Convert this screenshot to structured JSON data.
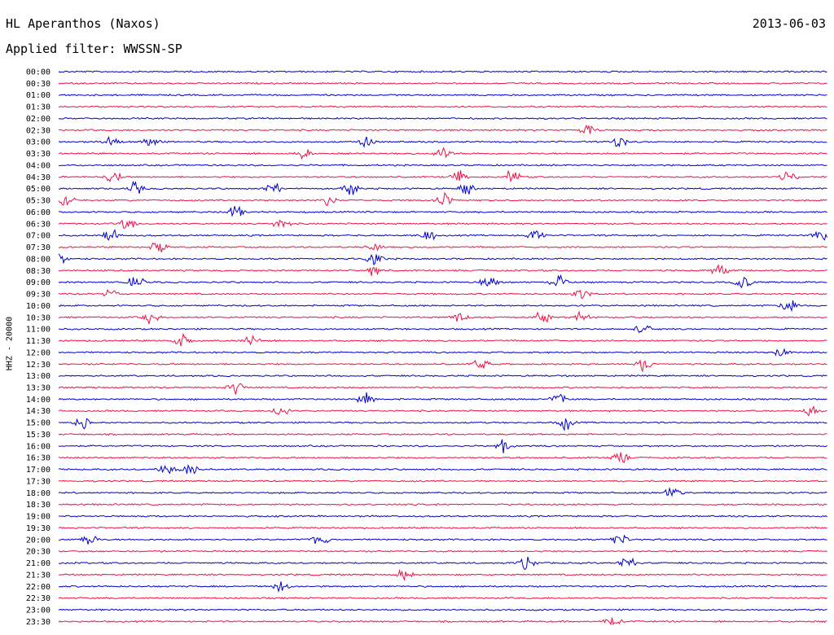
{
  "header": {
    "station": "HL Aperanthos (Naxos)",
    "date": "2013-06-03",
    "filter": "Applied filter: WWSSN-SP"
  },
  "channel_label": "HHZ - 20000",
  "colors": {
    "a": "#0000cc",
    "b": "#ee1144"
  },
  "chart_data": {
    "type": "line",
    "title": "HL Aperanthos (Naxos)",
    "date": "2013-06-03",
    "ylabel": "HHZ - 20000",
    "row_labels": [
      "00:00",
      "00:30",
      "01:00",
      "01:30",
      "02:00",
      "02:30",
      "03:00",
      "03:30",
      "04:00",
      "04:30",
      "05:00",
      "05:30",
      "06:00",
      "06:30",
      "07:00",
      "07:30",
      "08:00",
      "08:30",
      "09:00",
      "09:30",
      "10:00",
      "10:30",
      "11:00",
      "11:30",
      "12:00",
      "12:30",
      "13:00",
      "13:30",
      "14:00",
      "14:30",
      "15:00",
      "15:30",
      "16:00",
      "16:30",
      "17:00",
      "17:30",
      "18:00",
      "18:30",
      "19:00",
      "19:30",
      "20:00",
      "20:30",
      "21:00",
      "21:30",
      "22:00",
      "22:30",
      "23:00",
      "23:30"
    ],
    "series_colors": [
      "#0000cc",
      "#ee1144"
    ],
    "row_events": [
      [],
      [],
      [],
      [],
      [],
      [
        0.69
      ],
      [
        0.07,
        0.12,
        0.4,
        0.73
      ],
      [
        0.32,
        0.5
      ],
      [],
      [
        0.07,
        0.52,
        0.59,
        0.95
      ],
      [
        0.1,
        0.28,
        0.38,
        0.53
      ],
      [
        0.01,
        0.35,
        0.5
      ],
      [
        0.23
      ],
      [
        0.09,
        0.29
      ],
      [
        0.07,
        0.48,
        0.62,
        0.99
      ],
      [
        0.13,
        0.41
      ],
      [
        0.0,
        0.41
      ],
      [
        0.41,
        0.86
      ],
      [
        0.1,
        0.56,
        0.65,
        0.89
      ],
      [
        0.07,
        0.68
      ],
      [
        0.95
      ],
      [
        0.12,
        0.52,
        0.63,
        0.68
      ],
      [
        0.76
      ],
      [
        0.16,
        0.25
      ],
      [
        0.94
      ],
      [
        0.55,
        0.76
      ],
      [],
      [
        0.23
      ],
      [
        0.4,
        0.65
      ],
      [
        0.29,
        0.98
      ],
      [
        0.03,
        0.66
      ],
      [],
      [
        0.58
      ],
      [
        0.73
      ],
      [
        0.14,
        0.17
      ],
      [],
      [
        0.8
      ],
      [],
      [],
      [],
      [
        0.04,
        0.34,
        0.73
      ],
      [],
      [
        0.61,
        0.74
      ],
      [
        0.45
      ],
      [
        0.29
      ],
      [],
      [],
      [
        0.72
      ]
    ]
  }
}
